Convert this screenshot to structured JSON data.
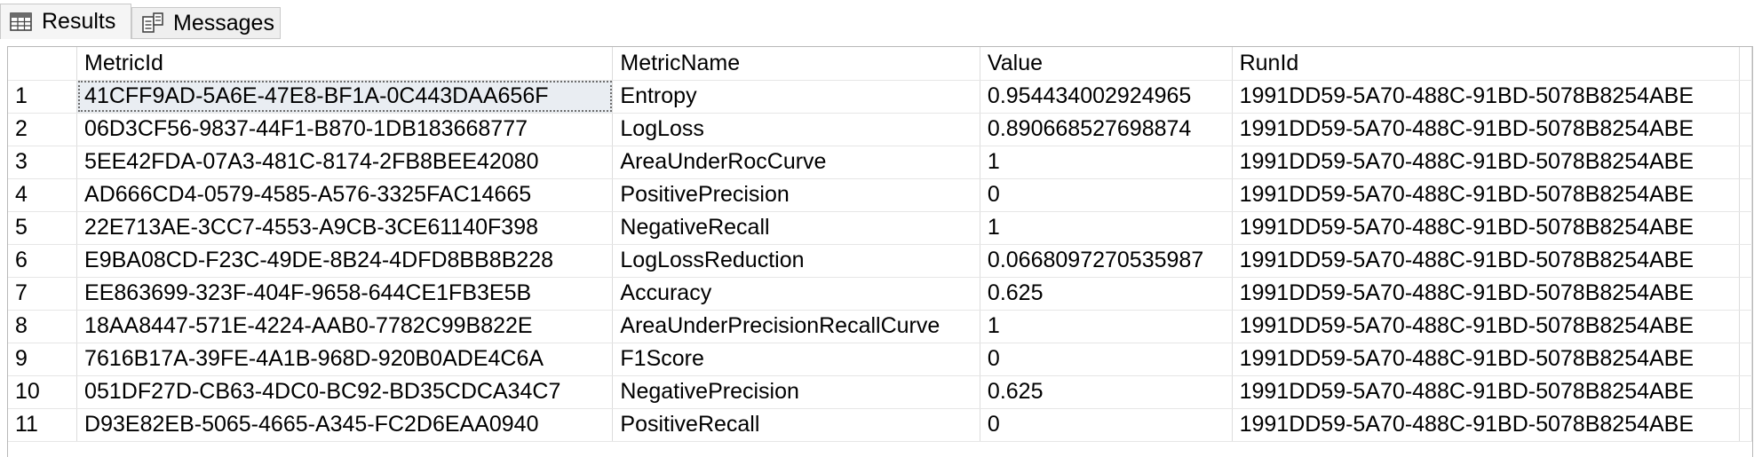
{
  "tabs": [
    {
      "label": "Results",
      "icon": "grid-icon",
      "active": true
    },
    {
      "label": "Messages",
      "icon": "messages-icon",
      "active": false
    }
  ],
  "grid": {
    "columns": [
      "",
      "MetricId",
      "MetricName",
      "Value",
      "RunId"
    ],
    "rows": [
      {
        "n": "1",
        "metric_id": "41CFF9AD-5A6E-47E8-BF1A-0C443DAA656F",
        "metric_name": "Entropy",
        "value": "0.954434002924965",
        "run_id": "1991DD59-5A70-488C-91BD-5078B8254ABE"
      },
      {
        "n": "2",
        "metric_id": "06D3CF56-9837-44F1-B870-1DB183668777",
        "metric_name": "LogLoss",
        "value": "0.890668527698874",
        "run_id": "1991DD59-5A70-488C-91BD-5078B8254ABE"
      },
      {
        "n": "3",
        "metric_id": "5EE42FDA-07A3-481C-8174-2FB8BEE42080",
        "metric_name": "AreaUnderRocCurve",
        "value": "1",
        "run_id": "1991DD59-5A70-488C-91BD-5078B8254ABE"
      },
      {
        "n": "4",
        "metric_id": "AD666CD4-0579-4585-A576-3325FAC14665",
        "metric_name": "PositivePrecision",
        "value": "0",
        "run_id": "1991DD59-5A70-488C-91BD-5078B8254ABE"
      },
      {
        "n": "5",
        "metric_id": "22E713AE-3CC7-4553-A9CB-3CE61140F398",
        "metric_name": "NegativeRecall",
        "value": "1",
        "run_id": "1991DD59-5A70-488C-91BD-5078B8254ABE"
      },
      {
        "n": "6",
        "metric_id": "E9BA08CD-F23C-49DE-8B24-4DFD8BB8B228",
        "metric_name": "LogLossReduction",
        "value": "0.0668097270535987",
        "run_id": "1991DD59-5A70-488C-91BD-5078B8254ABE"
      },
      {
        "n": "7",
        "metric_id": "EE863699-323F-404F-9658-644CE1FB3E5B",
        "metric_name": "Accuracy",
        "value": "0.625",
        "run_id": "1991DD59-5A70-488C-91BD-5078B8254ABE"
      },
      {
        "n": "8",
        "metric_id": "18AA8447-571E-4224-AAB0-7782C99B822E",
        "metric_name": "AreaUnderPrecisionRecallCurve",
        "value": "1",
        "run_id": "1991DD59-5A70-488C-91BD-5078B8254ABE"
      },
      {
        "n": "9",
        "metric_id": "7616B17A-39FE-4A1B-968D-920B0ADE4C6A",
        "metric_name": "F1Score",
        "value": "0",
        "run_id": "1991DD59-5A70-488C-91BD-5078B8254ABE"
      },
      {
        "n": "10",
        "metric_id": "051DF27D-CB63-4DC0-BC92-BD35CDCA34C7",
        "metric_name": "NegativePrecision",
        "value": "0.625",
        "run_id": "1991DD59-5A70-488C-91BD-5078B8254ABE"
      },
      {
        "n": "11",
        "metric_id": "D93E82EB-5065-4665-A345-FC2D6EAA0940",
        "metric_name": "PositiveRecall",
        "value": "0",
        "run_id": "1991DD59-5A70-488C-91BD-5078B8254ABE"
      }
    ],
    "selected_cell": {
      "row": 0,
      "column": "MetricId"
    }
  }
}
